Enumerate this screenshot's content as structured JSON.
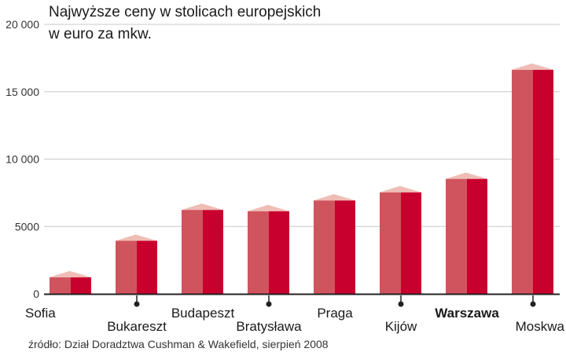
{
  "chart_data": {
    "type": "bar",
    "title": "Najwyższe ceny w stolicach europejskich",
    "subtitle": "w euro za mkw.",
    "categories": [
      "Sofia",
      "Bukareszt",
      "Budapeszt",
      "Bratysława",
      "Praga",
      "Kijów",
      "Warszawa",
      "Moskwa"
    ],
    "values": [
      1700,
      4400,
      6700,
      6600,
      7400,
      8000,
      9000,
      17100
    ],
    "highlight": "Warszawa",
    "ylim": [
      0,
      20000
    ],
    "yticks": [
      0,
      5000,
      10000,
      15000,
      20000
    ],
    "ytick_labels": [
      "0",
      "5000",
      "10 000",
      "15 000",
      "20 000"
    ],
    "xlabel": "",
    "ylabel": "",
    "grid": true,
    "source": "źródło: Dział Doradztwa Cushman & Wakefield, sierpień 2008",
    "colors": {
      "front": "#d0545e",
      "side": "#c8002e",
      "top": "#efbdb5",
      "grid": "#c8c8c8",
      "axis": "#222222"
    }
  }
}
